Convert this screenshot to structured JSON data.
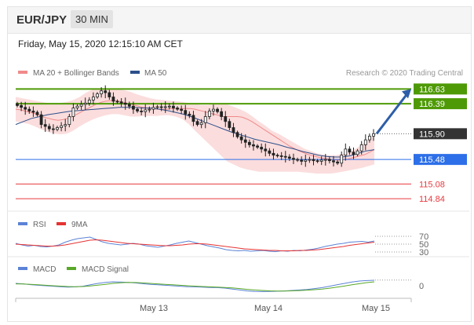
{
  "header": {
    "pair": "EUR/JPY",
    "timeframe": "30 MIN"
  },
  "datetime": "Friday, May 15, 2020 12:15:10 AM CET",
  "colors": {
    "bb_legend": "#f08a8a",
    "ma50": "#2c4f8a",
    "green": "#4e9a06",
    "blue": "#2d6fe8",
    "red": "#e8383d",
    "dark": "#333333",
    "rsi": "#5b82d6",
    "rsi9": "#e53333",
    "macd": "#5b82d6",
    "signal": "#59a828"
  },
  "legend_main": {
    "bb_label": "MA 20 + Bollinger Bands",
    "ma50_label": "MA 50",
    "credit": "Research © 2020 Trading Central"
  },
  "legend_rsi": {
    "rsi": "RSI",
    "ma9": "9MA"
  },
  "legend_macd": {
    "macd": "MACD",
    "signal": "MACD Signal"
  },
  "chart_data": [
    {
      "type": "candlestick",
      "title": "EUR/JPY",
      "ylim": [
        114.7,
        116.75
      ],
      "x_ticks": [
        "May 13",
        "May 14",
        "May 15"
      ],
      "levels": [
        {
          "value": 116.63,
          "label": "116.63",
          "kind": "resistance"
        },
        {
          "value": 116.39,
          "label": "116.39",
          "kind": "resistance"
        },
        {
          "value": 115.9,
          "label": "115.90",
          "kind": "last"
        },
        {
          "value": 115.48,
          "label": "115.48",
          "kind": "pivot"
        },
        {
          "value": 115.08,
          "label": "115.08",
          "kind": "support"
        },
        {
          "value": 114.84,
          "label": "114.84",
          "kind": "support"
        }
      ],
      "close": [
        116.36,
        116.33,
        116.3,
        116.27,
        116.25,
        116.21,
        116.05,
        116.02,
        115.98,
        115.97,
        116.0,
        116.03,
        116.05,
        116.18,
        116.32,
        116.35,
        116.38,
        116.4,
        116.45,
        116.5,
        116.55,
        116.6,
        116.57,
        116.5,
        116.43,
        116.42,
        116.4,
        116.38,
        116.35,
        116.3,
        116.27,
        116.26,
        116.29,
        116.3,
        116.33,
        116.34,
        116.33,
        116.34,
        116.35,
        116.32,
        116.3,
        116.28,
        116.22,
        116.2,
        116.1,
        116.05,
        116.08,
        116.18,
        116.27,
        116.3,
        116.26,
        116.18,
        116.1,
        116.0,
        115.92,
        115.85,
        115.8,
        115.76,
        115.72,
        115.7,
        115.68,
        115.65,
        115.62,
        115.58,
        115.55,
        115.54,
        115.53,
        115.52,
        115.5,
        115.48,
        115.47,
        115.45,
        115.47,
        115.48,
        115.46,
        115.45,
        115.47,
        115.48,
        115.46,
        115.44,
        115.42,
        115.55,
        115.65,
        115.6,
        115.56,
        115.62,
        115.72,
        115.8,
        115.86,
        115.9
      ],
      "ma20_bollinger": {
        "mid": [
          116.3,
          116.29,
          116.27,
          116.25,
          116.23,
          116.2,
          116.17,
          116.15,
          116.13,
          116.12,
          116.13,
          116.15,
          116.18,
          116.22,
          116.26,
          116.3,
          116.34,
          116.38,
          116.41,
          116.43,
          116.44,
          116.44,
          116.43,
          116.41,
          116.39,
          116.37,
          116.35,
          116.33,
          116.32,
          116.31,
          116.3,
          116.3,
          116.3,
          116.31,
          116.31,
          116.31,
          116.31,
          116.31,
          116.3,
          116.28,
          116.26,
          116.24,
          116.22,
          116.2,
          116.18,
          116.18,
          116.18,
          116.18,
          116.17,
          116.14,
          116.1,
          116.05,
          116.0,
          115.95,
          115.9,
          115.85,
          115.8,
          115.75,
          115.7,
          115.66,
          115.62,
          115.59,
          115.56,
          115.54,
          115.52,
          115.5,
          115.49,
          115.48,
          115.47,
          115.47,
          115.48,
          115.5,
          115.52,
          115.54,
          115.56,
          115.6,
          115.64
        ],
        "upper": [
          116.5,
          116.48,
          116.46,
          116.44,
          116.42,
          116.4,
          116.39,
          116.4,
          116.42,
          116.45,
          116.5,
          116.57,
          116.62,
          116.64,
          116.64,
          116.64,
          116.63,
          116.61,
          116.58,
          116.54,
          116.51,
          116.48,
          116.46,
          116.45,
          116.44,
          116.43,
          116.42,
          116.4,
          116.38,
          116.37,
          116.37,
          116.38,
          116.39,
          116.38,
          116.34,
          116.3,
          116.25,
          116.18,
          116.1,
          116.03,
          115.95,
          115.9,
          115.84,
          115.78,
          115.72,
          115.66,
          115.62,
          115.58,
          115.56,
          115.55,
          115.55,
          115.57,
          115.6,
          115.65,
          115.72,
          115.8,
          115.88
        ],
        "lower": [
          116.1,
          116.08,
          116.06,
          116.02,
          115.97,
          115.93,
          115.9,
          115.89,
          115.9,
          115.95,
          116.02,
          116.08,
          116.13,
          116.17,
          116.2,
          116.22,
          116.22,
          116.2,
          116.18,
          116.18,
          116.19,
          116.19,
          116.19,
          116.2,
          116.2,
          116.18,
          116.14,
          116.06,
          115.95,
          115.85,
          115.75,
          115.65,
          115.55,
          115.45,
          115.4,
          115.35,
          115.32,
          115.3,
          115.28,
          115.28,
          115.28,
          115.28,
          115.28,
          115.28,
          115.28,
          115.27,
          115.26,
          115.25,
          115.25,
          115.25,
          115.26,
          115.28,
          115.3,
          115.32,
          115.34,
          115.37,
          115.4
        ]
      },
      "ma50": [
        116.05,
        116.1,
        116.15,
        116.18,
        116.21,
        116.23,
        116.25,
        116.27,
        116.28,
        116.29,
        116.3,
        116.31,
        116.32,
        116.33,
        116.33,
        116.33,
        116.32,
        116.32,
        116.3,
        116.28,
        116.25,
        116.22,
        116.18,
        116.13,
        116.08,
        116.03,
        115.98,
        115.93,
        115.89,
        115.85,
        115.81,
        115.78,
        115.75,
        115.72,
        115.68,
        115.65,
        115.61,
        115.58,
        115.55,
        115.53,
        115.52,
        115.52,
        115.54,
        115.58,
        115.62,
        115.64
      ],
      "projection": {
        "from": 115.9,
        "to": 116.63
      }
    },
    {
      "type": "line",
      "title": "RSI",
      "y_ticks": [
        "70",
        "50",
        "30"
      ],
      "ylim": [
        20,
        80
      ],
      "series": [
        {
          "name": "RSI",
          "values": [
            52,
            48,
            45,
            47,
            44,
            43,
            45,
            48,
            55,
            60,
            64,
            66,
            68,
            62,
            56,
            52,
            50,
            48,
            50,
            52,
            50,
            46,
            44,
            42,
            45,
            48,
            52,
            55,
            58,
            54,
            50,
            46,
            43,
            40,
            36,
            34,
            33,
            34,
            32,
            33,
            34,
            32,
            31,
            33,
            32,
            34,
            33,
            35,
            37,
            40,
            44,
            47,
            50,
            52,
            55,
            56,
            57,
            55,
            58
          ]
        },
        {
          "name": "9MA",
          "values": [
            50,
            49,
            48,
            47,
            46,
            45,
            45,
            46,
            48,
            51,
            54,
            57,
            60,
            61,
            60,
            58,
            56,
            54,
            52,
            51,
            50,
            49,
            48,
            47,
            46,
            46,
            47,
            48,
            50,
            51,
            51,
            50,
            48,
            46,
            44,
            42,
            40,
            38,
            37,
            36,
            35,
            34,
            34,
            33,
            33,
            33,
            34,
            34,
            35,
            36,
            38,
            40,
            42,
            44,
            47,
            49,
            51,
            53,
            55
          ]
        }
      ]
    },
    {
      "type": "line",
      "title": "MACD",
      "y_ticks": [
        "0"
      ],
      "ylim": [
        -1,
        1
      ],
      "series": [
        {
          "name": "MACD",
          "values": [
            0.25,
            0.2,
            0.12,
            0.05,
            0.0,
            -0.05,
            -0.1,
            -0.15,
            -0.12,
            -0.05,
            0.1,
            0.25,
            0.35,
            0.42,
            0.4,
            0.35,
            0.3,
            0.22,
            0.15,
            0.1,
            0.05,
            0.0,
            -0.05,
            -0.1,
            -0.12,
            -0.15,
            -0.18,
            -0.2,
            -0.25,
            -0.35,
            -0.45,
            -0.55,
            -0.6,
            -0.62,
            -0.6,
            -0.58,
            -0.55,
            -0.5,
            -0.45,
            -0.4,
            -0.3,
            -0.2,
            -0.05,
            0.1,
            0.25,
            0.4,
            0.5,
            0.55,
            0.58
          ]
        },
        {
          "name": "MACD Signal",
          "values": [
            0.2,
            0.18,
            0.15,
            0.1,
            0.05,
            0.0,
            -0.04,
            -0.08,
            -0.1,
            -0.08,
            -0.02,
            0.06,
            0.15,
            0.25,
            0.32,
            0.35,
            0.34,
            0.3,
            0.25,
            0.2,
            0.15,
            0.1,
            0.05,
            0.0,
            -0.04,
            -0.08,
            -0.12,
            -0.15,
            -0.18,
            -0.23,
            -0.3,
            -0.38,
            -0.45,
            -0.5,
            -0.54,
            -0.56,
            -0.56,
            -0.54,
            -0.51,
            -0.47,
            -0.42,
            -0.35,
            -0.26,
            -0.15,
            -0.03,
            0.1,
            0.22,
            0.33,
            0.42
          ]
        }
      ]
    }
  ]
}
